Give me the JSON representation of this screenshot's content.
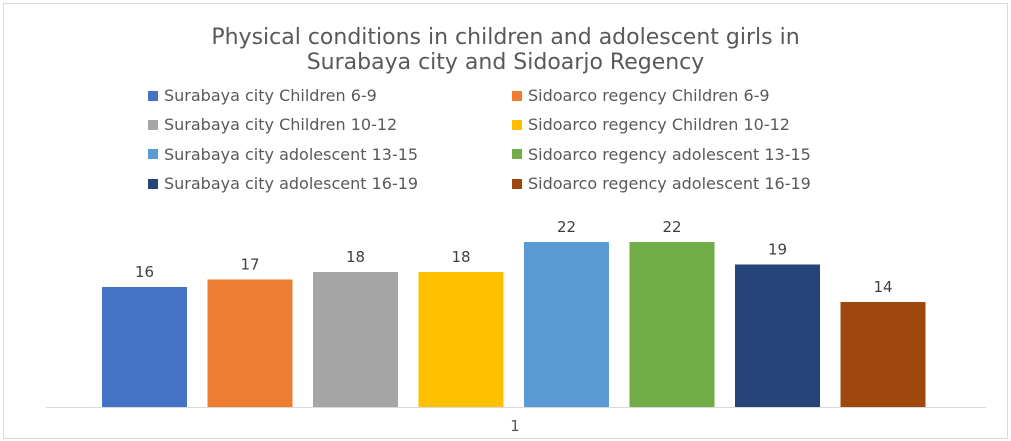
{
  "chart_data": {
    "type": "bar",
    "title": [
      "Physical conditions in children and adolescent girls in",
      "Surabaya city and Sidoarjo Regency"
    ],
    "categories": [
      "1"
    ],
    "series": [
      {
        "name": "Surabaya city Children 6-9",
        "value": 16,
        "color": "#4472C4"
      },
      {
        "name": "Sidoarco regency Children 6-9",
        "value": 17,
        "color": "#ED7D31"
      },
      {
        "name": "Surabaya city Children 10-12",
        "value": 18,
        "color": "#A5A5A5"
      },
      {
        "name": "Sidoarco regency Children 10-12",
        "value": 18,
        "color": "#FFC000"
      },
      {
        "name": "Surabaya city adolescent 13-15",
        "value": 22,
        "color": "#5B9BD5"
      },
      {
        "name": "Sidoarco regency adolescent 13-15",
        "value": 22,
        "color": "#70AD47"
      },
      {
        "name": "Surabaya city adolescent 16-19",
        "value": 19,
        "color": "#264478"
      },
      {
        "name": "Sidoarco regency adolescent 16-19",
        "value": 14,
        "color": "#9E480E"
      }
    ],
    "legend_position": "top",
    "data_labels": true,
    "gridlines": false
  }
}
